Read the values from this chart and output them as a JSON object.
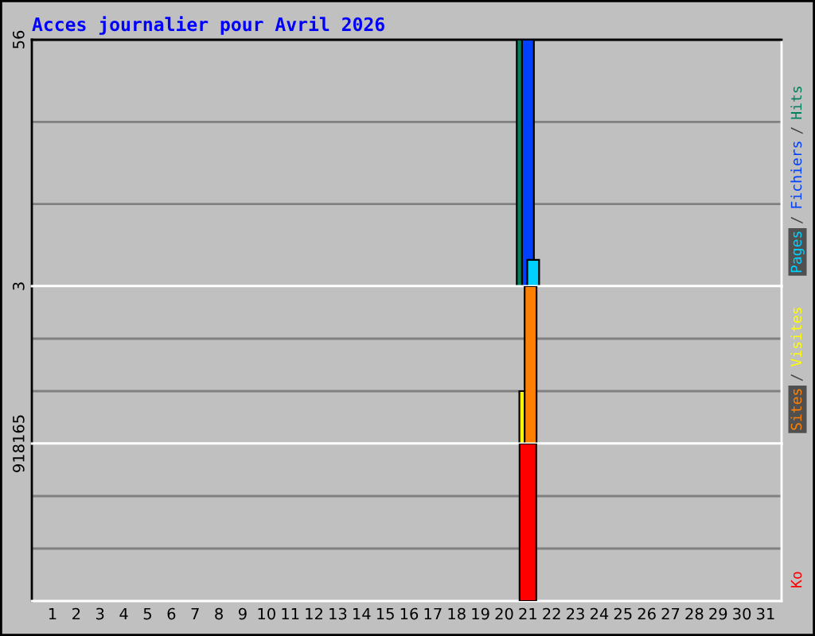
{
  "chart_data": [
    {
      "type": "bar",
      "title": "Acces journalier pour Avril 2026",
      "categories": [
        "1",
        "2",
        "3",
        "4",
        "5",
        "6",
        "7",
        "8",
        "9",
        "10",
        "11",
        "12",
        "13",
        "14",
        "15",
        "16",
        "17",
        "18",
        "19",
        "20",
        "21",
        "22",
        "23",
        "24",
        "25",
        "26",
        "27",
        "28",
        "29",
        "30",
        "31"
      ],
      "series": [
        {
          "name": "Hits",
          "color": "#00805c",
          "values": [
            null,
            null,
            null,
            null,
            null,
            null,
            null,
            null,
            null,
            null,
            null,
            null,
            null,
            null,
            null,
            null,
            null,
            null,
            null,
            null,
            56,
            null,
            null,
            null,
            null,
            null,
            null,
            null,
            null,
            null,
            null
          ]
        },
        {
          "name": "Fichiers",
          "color": "#0040ff",
          "values": [
            null,
            null,
            null,
            null,
            null,
            null,
            null,
            null,
            null,
            null,
            null,
            null,
            null,
            null,
            null,
            null,
            null,
            null,
            null,
            null,
            56,
            null,
            null,
            null,
            null,
            null,
            null,
            null,
            null,
            null,
            null
          ]
        },
        {
          "name": "Pages",
          "color": "#00d0ff",
          "values": [
            null,
            null,
            null,
            null,
            null,
            null,
            null,
            null,
            null,
            null,
            null,
            null,
            null,
            null,
            null,
            null,
            null,
            null,
            null,
            null,
            6,
            null,
            null,
            null,
            null,
            null,
            null,
            null,
            null,
            null,
            null
          ]
        }
      ],
      "ylim": [
        0,
        56
      ],
      "yticks": [
        {
          "value": 18.67,
          "label": null
        },
        {
          "value": 37.33,
          "label": null
        },
        56
      ],
      "grid": "y",
      "tick_labels": "y",
      "annotations": [
        "/",
        "/"
      ]
    },
    {
      "type": "bar",
      "categories": [
        "1",
        "2",
        "3",
        "4",
        "5",
        "6",
        "7",
        "8",
        "9",
        "10",
        "11",
        "12",
        "13",
        "14",
        "15",
        "16",
        "17",
        "18",
        "19",
        "20",
        "21",
        "22",
        "23",
        "24",
        "25",
        "26",
        "27",
        "28",
        "29",
        "30",
        "31"
      ],
      "series": [
        {
          "name": "Visites",
          "color": "#ffff00",
          "values": [
            null,
            null,
            null,
            null,
            null,
            null,
            null,
            null,
            null,
            null,
            null,
            null,
            null,
            null,
            null,
            null,
            null,
            null,
            null,
            null,
            1,
            null,
            null,
            null,
            null,
            null,
            null,
            null,
            null,
            null,
            null
          ]
        },
        {
          "name": "Sites",
          "color": "#ff8000",
          "values": [
            null,
            null,
            null,
            null,
            null,
            null,
            null,
            null,
            null,
            null,
            null,
            null,
            null,
            null,
            null,
            null,
            null,
            null,
            null,
            null,
            3,
            null,
            null,
            null,
            null,
            null,
            null,
            null,
            null,
            null,
            null
          ]
        }
      ],
      "ylim": [
        0,
        3
      ],
      "yticks": [
        {
          "value": 1,
          "label": null
        },
        {
          "value": 2,
          "label": null
        },
        3
      ],
      "grid": "y",
      "tick_labels": "y",
      "annotations": [
        "/"
      ]
    },
    {
      "type": "bar",
      "categories": [
        "1",
        "2",
        "3",
        "4",
        "5",
        "6",
        "7",
        "8",
        "9",
        "10",
        "11",
        "12",
        "13",
        "14",
        "15",
        "16",
        "17",
        "18",
        "19",
        "20",
        "21",
        "22",
        "23",
        "24",
        "25",
        "26",
        "27",
        "28",
        "29",
        "30",
        "31"
      ],
      "series": [
        {
          "name": "Ko",
          "color": "#ff0000",
          "values": [
            null,
            null,
            null,
            null,
            null,
            null,
            null,
            null,
            null,
            null,
            null,
            null,
            null,
            null,
            null,
            null,
            null,
            null,
            null,
            null,
            918165,
            null,
            null,
            null,
            null,
            null,
            null,
            null,
            null,
            null,
            null
          ]
        }
      ],
      "ylim": [
        0,
        918165
      ],
      "yticks": [
        {
          "value": 306055,
          "label": null
        },
        {
          "value": 612110,
          "label": null
        },
        918165
      ],
      "grid": "y"
    }
  ]
}
